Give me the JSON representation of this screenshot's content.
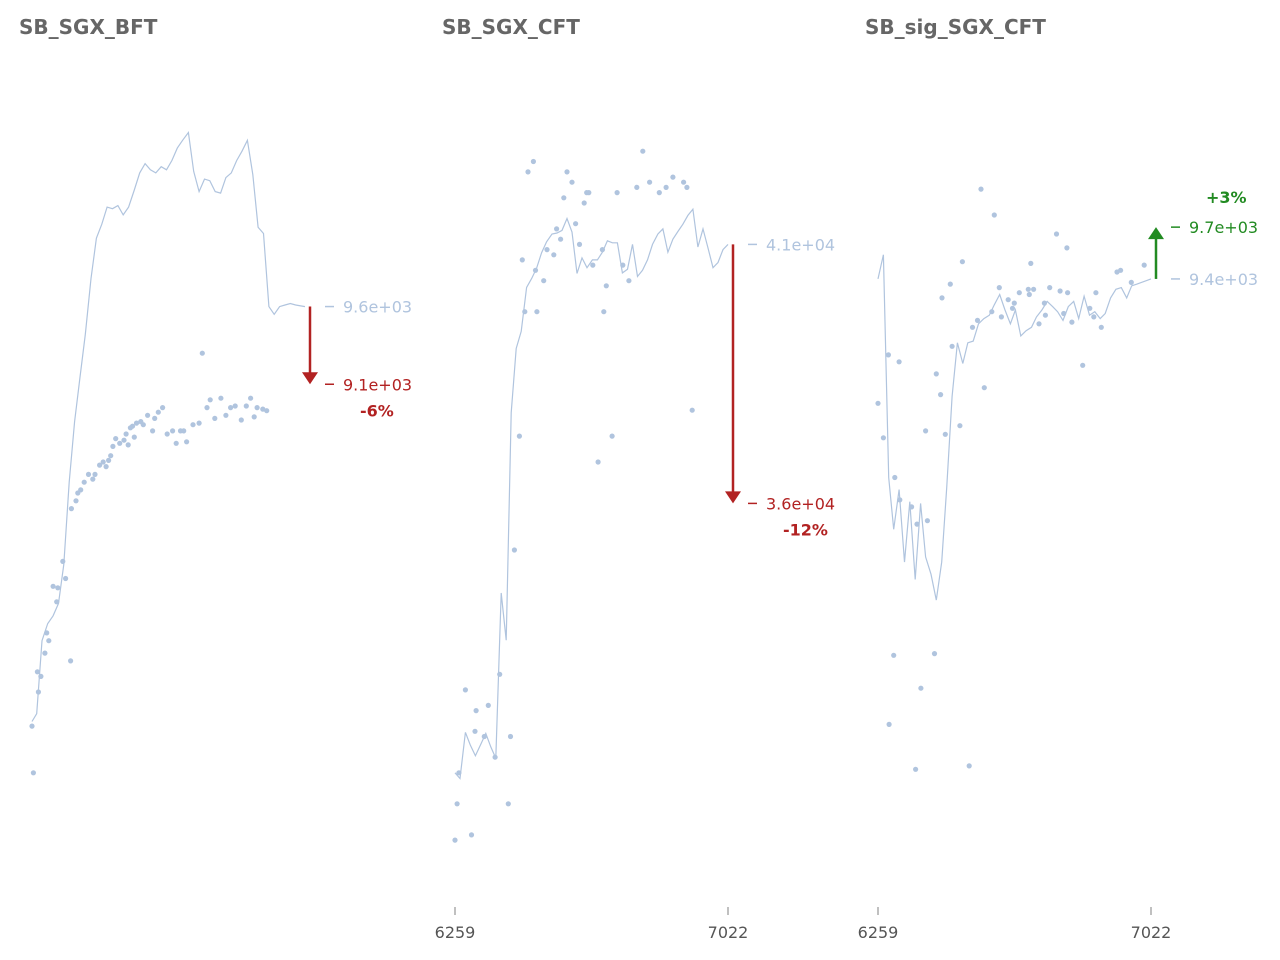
{
  "colors": {
    "series": "#b0c4de",
    "down": "#b22222",
    "up": "#228b22",
    "title": "#666666",
    "tick": "#555555"
  },
  "chart_data": [
    {
      "type": "scatter",
      "title": "SB_SGX_BFT",
      "xlabel": "",
      "ylabel": "",
      "xlim": [
        6259,
        7022
      ],
      "ylim": [
        6000,
        11000
      ],
      "show_x_ticks": false,
      "series": [
        {
          "x": [
            6259,
            6263,
            6277,
            6274,
            6284,
            6295,
            6300,
            6306,
            6318,
            6328,
            6331,
            6345,
            6353,
            6367,
            6369,
            6382,
            6387,
            6395,
            6405,
            6417,
            6429,
            6435,
            6448,
            6458,
            6466,
            6473,
            6479,
            6485,
            6493,
            6504,
            6516,
            6522,
            6528,
            6534,
            6540,
            6545,
            6551,
            6563,
            6570,
            6582,
            6596,
            6602,
            6612,
            6624,
            6637,
            6652,
            6662,
            6674,
            6683,
            6691,
            6709,
            6726,
            6735,
            6748,
            6757,
            6770,
            6787,
            6801,
            6814,
            6827,
            6844,
            6858,
            6870,
            6880,
            6888,
            6904,
            6915
          ],
          "y": [
            6900,
            6600,
            7120,
            7250,
            7220,
            7370,
            7500,
            7450,
            7800,
            7700,
            7790,
            7960,
            7850,
            7320,
            8300,
            8350,
            8400,
            8420,
            8470,
            8520,
            8490,
            8520,
            8580,
            8600,
            8570,
            8610,
            8640,
            8700,
            8750,
            8720,
            8740,
            8780,
            8710,
            8820,
            8830,
            8760,
            8850,
            8860,
            8840,
            8900,
            8800,
            8880,
            8920,
            8950,
            8780,
            8800,
            8720,
            8800,
            8800,
            8730,
            8840,
            8850,
            9300,
            8950,
            9000,
            8880,
            9010,
            8900,
            8950,
            8960,
            8870,
            8960,
            9010,
            8890,
            8950,
            8940,
            8930
          ]
        }
      ],
      "moving_average": {
        "x": [
          6259,
          6272,
          6287,
          6303,
          6318,
          6333,
          6348,
          6363,
          6378,
          6393,
          6408,
          6424,
          6439,
          6454,
          6469,
          6484,
          6499,
          6514,
          6529,
          6545,
          6560,
          6575,
          6590,
          6605,
          6620,
          6635,
          6650,
          6665,
          6680,
          6696,
          6711,
          6726,
          6741,
          6756,
          6771,
          6786,
          6801,
          6816,
          6831,
          6846,
          6861,
          6876,
          6891,
          6906,
          6921,
          6936,
          6951,
          6966,
          6981,
          6996,
          7022
        ],
        "y": [
          6930,
          6980,
          7450,
          7560,
          7610,
          7690,
          7940,
          8470,
          8860,
          9140,
          9420,
          9780,
          10040,
          10130,
          10240,
          10230,
          10250,
          10190,
          10240,
          10350,
          10460,
          10520,
          10480,
          10460,
          10500,
          10480,
          10540,
          10620,
          10670,
          10720,
          10470,
          10340,
          10420,
          10410,
          10340,
          10330,
          10430,
          10460,
          10540,
          10600,
          10670,
          10450,
          10110,
          10070,
          9600,
          9550,
          9600,
          9610,
          9620,
          9610,
          9600
        ]
      },
      "annotation": {
        "start_label": "9.6e+03",
        "end_label": "9.1e+03",
        "pct": "-6%",
        "start_value": 9600,
        "end_value": 9100,
        "direction": "down"
      }
    },
    {
      "type": "scatter",
      "title": "SB_SGX_CFT",
      "xlabel": "",
      "ylabel": "",
      "xlim": [
        6259,
        7022
      ],
      "ylim": [
        29000,
        44000
      ],
      "xticks": [
        "6259",
        "7022"
      ],
      "show_x_ticks": true,
      "series": [
        {
          "x": [
            6259,
            6265,
            6270,
            6288,
            6305,
            6315,
            6318,
            6341,
            6352,
            6371,
            6384,
            6408,
            6414,
            6425,
            6439,
            6447,
            6454,
            6463,
            6478,
            6484,
            6488,
            6507,
            6516,
            6535,
            6543,
            6554,
            6563,
            6572,
            6586,
            6596,
            6607,
            6620,
            6627,
            6633,
            6644,
            6659,
            6671,
            6675,
            6682,
            6698,
            6712,
            6728,
            6745,
            6767,
            6784,
            6803,
            6830,
            6849,
            6868,
            6898,
            6907,
            6922
          ],
          "y": [
            29500,
            30200,
            30800,
            32400,
            29600,
            31600,
            32000,
            31500,
            32100,
            31100,
            32700,
            30200,
            31500,
            35100,
            37300,
            40700,
            39700,
            42400,
            42600,
            40500,
            39700,
            40300,
            40900,
            40800,
            41300,
            41100,
            41900,
            42400,
            42200,
            41400,
            41000,
            41800,
            42000,
            42000,
            40600,
            36800,
            40900,
            39700,
            40200,
            37300,
            42000,
            40600,
            40300,
            42100,
            42800,
            42200,
            42000,
            42100,
            42300,
            42200,
            42100,
            37800
          ]
        }
      ],
      "moving_average": {
        "x": [
          6259,
          6273,
          6288,
          6302,
          6316,
          6331,
          6345,
          6359,
          6373,
          6388,
          6402,
          6416,
          6430,
          6444,
          6459,
          6473,
          6487,
          6501,
          6515,
          6530,
          6544,
          6558,
          6572,
          6586,
          6600,
          6614,
          6628,
          6643,
          6657,
          6671,
          6685,
          6699,
          6713,
          6727,
          6741,
          6755,
          6769,
          6783,
          6797,
          6811,
          6826,
          6840,
          6854,
          6868,
          6882,
          6896,
          6910,
          6924,
          6938,
          6952,
          6966,
          6980,
          6994,
          7008,
          7022
        ],
        "y": [
          30800,
          30690,
          31580,
          31330,
          31130,
          31350,
          31560,
          31300,
          31080,
          34270,
          33360,
          37750,
          38990,
          39320,
          40170,
          40340,
          40540,
          40840,
          41050,
          41200,
          41220,
          41270,
          41500,
          41240,
          40440,
          40740,
          40550,
          40700,
          40700,
          40850,
          41070,
          41030,
          41030,
          40450,
          40520,
          41000,
          40380,
          40500,
          40700,
          41000,
          41200,
          41300,
          40850,
          41100,
          41250,
          41390,
          41560,
          41680,
          40950,
          41300,
          40930,
          40550,
          40650,
          40900,
          41000
        ]
      },
      "annotation": {
        "start_label": "4.1e+04",
        "end_label": "3.6e+04",
        "pct": "-12%",
        "start_value": 41000,
        "end_value": 36000,
        "direction": "down"
      }
    },
    {
      "type": "scatter",
      "title": "SB_sig_SGX_CFT",
      "xlabel": "",
      "ylabel": "",
      "xlim": [
        6259,
        7022
      ],
      "ylim": [
        6000,
        10500
      ],
      "xticks": [
        "6259",
        "7022"
      ],
      "show_x_ticks": true,
      "series": [
        {
          "x": [
            6259,
            6274,
            6288,
            6290,
            6303,
            6306,
            6318,
            6320,
            6353,
            6364,
            6368,
            6379,
            6392,
            6397,
            6417,
            6422,
            6434,
            6438,
            6447,
            6461,
            6466,
            6488,
            6495,
            6514,
            6523,
            6537,
            6547,
            6556,
            6577,
            6584,
            6598,
            6604,
            6623,
            6635,
            6640,
            6654,
            6679,
            6682,
            6686,
            6694,
            6709,
            6724,
            6727,
            6739,
            6758,
            6768,
            6778,
            6787,
            6789,
            6801,
            6831,
            6851,
            6862,
            6868,
            6883,
            6927,
            6937,
            6967,
            7003
          ],
          "y": [
            8680,
            8480,
            8960,
            6820,
            7220,
            8250,
            8920,
            8120,
            8080,
            6560,
            7980,
            7030,
            8520,
            8000,
            7230,
            8850,
            8730,
            9290,
            8500,
            9370,
            9010,
            8550,
            9500,
            6580,
            9120,
            9160,
            9920,
            8770,
            9210,
            9770,
            9350,
            9180,
            9280,
            9230,
            9260,
            9320,
            9340,
            9310,
            9490,
            9340,
            9140,
            9260,
            9190,
            9350,
            9660,
            9330,
            9200,
            9580,
            9320,
            9150,
            8900,
            9230,
            9180,
            9320,
            9120,
            9440,
            9450,
            9380,
            9480
          ]
        }
      ],
      "moving_average": {
        "x": [
          6259,
          6274,
          6289,
          6303,
          6318,
          6333,
          6348,
          6363,
          6378,
          6392,
          6407,
          6422,
          6437,
          6451,
          6466,
          6481,
          6496,
          6510,
          6525,
          6540,
          6555,
          6570,
          6584,
          6599,
          6614,
          6629,
          6643,
          6658,
          6673,
          6688,
          6702,
          6717,
          6732,
          6747,
          6761,
          6776,
          6791,
          6806,
          6820,
          6835,
          6850,
          6865,
          6880,
          6894,
          6909,
          6924,
          6939,
          6954,
          6968,
          6983,
          7022
        ],
        "y": [
          9400,
          9540,
          8250,
          7950,
          8180,
          7760,
          8110,
          7660,
          8100,
          7790,
          7690,
          7540,
          7760,
          8190,
          8720,
          9030,
          8910,
          9030,
          9040,
          9140,
          9170,
          9190,
          9250,
          9310,
          9220,
          9140,
          9220,
          9070,
          9100,
          9120,
          9180,
          9220,
          9270,
          9240,
          9210,
          9160,
          9240,
          9270,
          9170,
          9300,
          9190,
          9210,
          9170,
          9200,
          9290,
          9340,
          9350,
          9290,
          9360,
          9370,
          9400
        ]
      },
      "annotation": {
        "start_label": "9.4e+03",
        "end_label": "9.7e+03",
        "pct": "+3%",
        "start_value": 9400,
        "end_value": 9700,
        "direction": "up"
      }
    }
  ]
}
